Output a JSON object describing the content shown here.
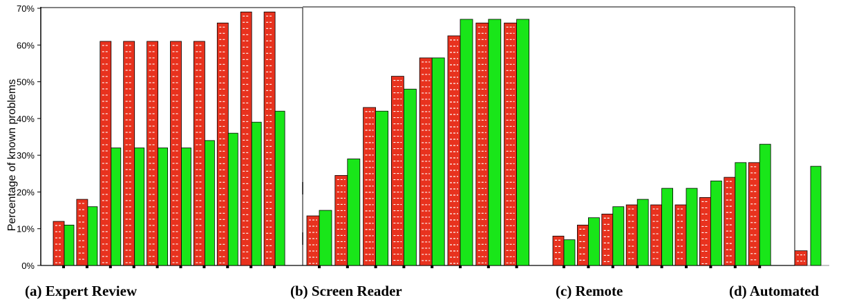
{
  "chart_data": {
    "type": "bar",
    "ylabel": "Percentage of known problems",
    "ylim": [
      0,
      70
    ],
    "yticks": [
      "0%",
      "10%",
      "20%",
      "30%",
      "40%",
      "50%",
      "60%",
      "70%"
    ],
    "grid": false,
    "legend": "none",
    "colors": {
      "red": "#e8321e",
      "green": "#19e619",
      "stripe": "#ffffff"
    },
    "panels": [
      {
        "label": "(a) Expert Review",
        "red": [
          12,
          18,
          61,
          61,
          61,
          61,
          61,
          66,
          69,
          69
        ],
        "green": [
          11,
          16,
          32,
          32,
          32,
          32,
          34,
          36,
          39,
          42
        ]
      },
      {
        "label": "(b) Screen Reader",
        "red": [
          13.5,
          24.5,
          43,
          51.5,
          56.5,
          62.5,
          66,
          66
        ],
        "green": [
          15,
          29,
          42,
          48,
          56.5,
          67,
          67,
          67
        ]
      },
      {
        "label": "(c) Remote",
        "red": [
          8,
          11,
          14,
          16.5,
          16.5,
          16.5,
          18.5,
          24,
          28
        ],
        "green": [
          7,
          13,
          16,
          18,
          21,
          21,
          23,
          28,
          33
        ]
      },
      {
        "label": "(d) Automated",
        "red": [
          4
        ],
        "green": [
          27
        ]
      }
    ]
  }
}
